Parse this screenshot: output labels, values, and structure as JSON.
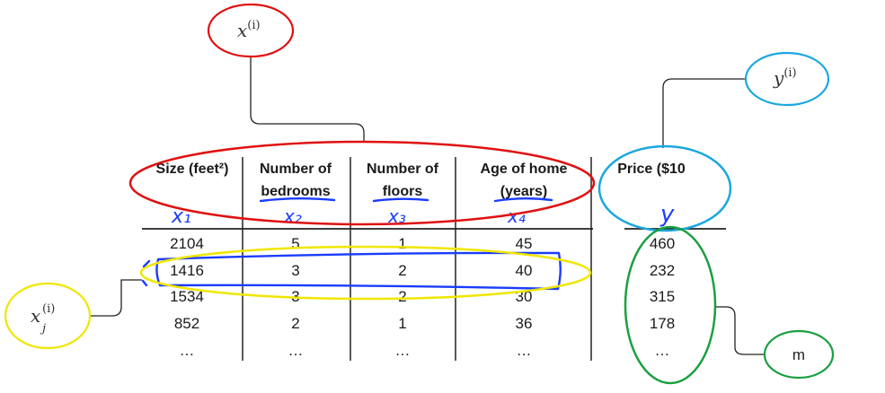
{
  "table": {
    "columns": [
      {
        "header": "Size (feet²)",
        "hand_label": "x₁"
      },
      {
        "header_line1": "Number of",
        "header_line2": "bedrooms",
        "hand_label": "x₂"
      },
      {
        "header_line1": "Number of",
        "header_line2": "floors",
        "hand_label": "x₃"
      },
      {
        "header_line1": "Age of home",
        "header_line2": "(years)",
        "hand_label": "x₄"
      },
      {
        "header": "Price ($10",
        "hand_label": "y"
      }
    ],
    "rows": [
      [
        "2104",
        "5",
        "1",
        "45",
        "460"
      ],
      [
        "1416",
        "3",
        "2",
        "40",
        "232"
      ],
      [
        "1534",
        "3",
        "2",
        "30",
        "315"
      ],
      [
        "852",
        "2",
        "1",
        "36",
        "178"
      ],
      [
        "…",
        "…",
        "…",
        "…",
        "…"
      ]
    ]
  },
  "annotations": {
    "features": {
      "label": "x(i)",
      "base": "x",
      "sup": "(i)",
      "color": "#e01010"
    },
    "target": {
      "label": "y(i)",
      "base": "y",
      "sup": "(i)",
      "color": "#1aa7e0"
    },
    "single_feature": {
      "label": "x_j(i)",
      "base": "x",
      "sub": "j",
      "sup": "(i)",
      "color": "#f0e600"
    },
    "count": {
      "label": "m",
      "color": "#1aa040"
    }
  }
}
